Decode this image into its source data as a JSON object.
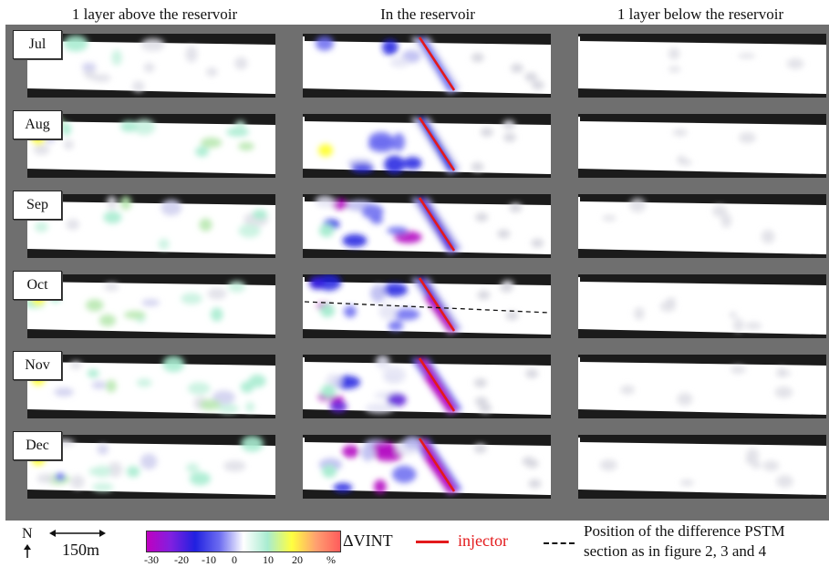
{
  "column_titles": [
    "1 layer above the reservoir",
    "In the reservoir",
    "1 layer below the reservoir"
  ],
  "months": [
    "Jul",
    "Aug",
    "Sep",
    "Oct",
    "Nov",
    "Dec"
  ],
  "legend": {
    "north_label": "N",
    "scale_label": "150m",
    "colorbar_ticks": [
      "-30",
      "-20",
      "-10",
      "0",
      "10",
      "20",
      "%"
    ],
    "colorbar_label": "ΔVINT",
    "injector_label": "injector",
    "section_label_line1": "Position of the difference PSTM",
    "section_label_line2": "section as in figure 2, 3 and 4"
  },
  "colors": {
    "injector": "#e31a1c",
    "frame": "#6f6f6f",
    "colorbar": [
      "#c000c0",
      "#8020e0",
      "#2020e0",
      "#6c6cf0",
      "#ffffff",
      "#a8ecd0",
      "#ffff40",
      "#ffa070",
      "#ff5c5c"
    ]
  },
  "anomaly": {
    "in_reservoir_strength": [
      0.15,
      0.45,
      0.7,
      0.85,
      0.95,
      1.0
    ],
    "above_strength": [
      0.25,
      0.45,
      0.35,
      0.45,
      0.6,
      0.6
    ],
    "below_strength": [
      0.05,
      0.05,
      0.1,
      0.12,
      0.12,
      0.15
    ]
  }
}
